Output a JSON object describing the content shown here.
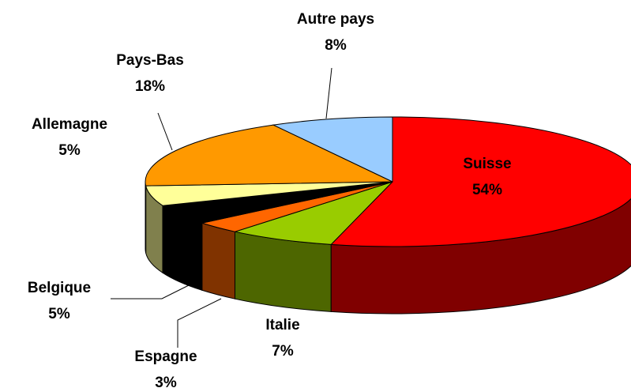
{
  "chart_data": {
    "type": "pie3d",
    "categories": [
      "Suisse",
      "Italie",
      "Espagne",
      "Belgique",
      "Allemagne",
      "Pays-Bas",
      "Autre pays"
    ],
    "values": [
      54,
      7,
      3,
      5,
      5,
      18,
      8
    ],
    "value_labels": [
      "54%",
      "7%",
      "3%",
      "5%",
      "5%",
      "18%",
      "8%"
    ],
    "colors": [
      "#ff0000",
      "#99cc00",
      "#ff6600",
      "#000000",
      "#ffff99",
      "#ff9900",
      "#99ccff"
    ]
  }
}
